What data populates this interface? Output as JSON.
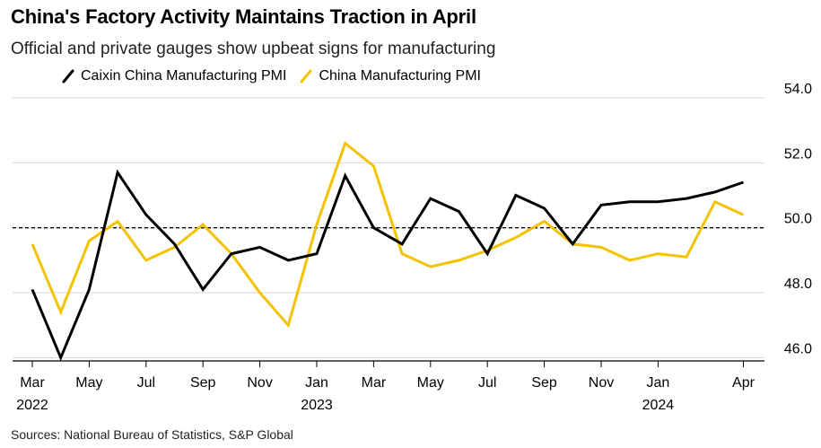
{
  "header": {
    "title": "China's Factory Activity Maintains Traction in April",
    "subtitle": "Official and private gauges show upbeat signs for manufacturing"
  },
  "legend": [
    {
      "label": "Caixin China Manufacturing PMI",
      "color": "#000000"
    },
    {
      "label": "China Manufacturing PMI",
      "color": "#f5c200"
    }
  ],
  "footer": {
    "source": "Sources: National Bureau of Statistics, S&P Global"
  },
  "chart_data": {
    "type": "line",
    "title": "China's Factory Activity Maintains Traction in April",
    "subtitle": "Official and private gauges show upbeat signs for manufacturing",
    "x": [
      "2022-03",
      "2022-04",
      "2022-05",
      "2022-06",
      "2022-07",
      "2022-08",
      "2022-09",
      "2022-10",
      "2022-11",
      "2022-12",
      "2023-01",
      "2023-02",
      "2023-03",
      "2023-04",
      "2023-05",
      "2023-06",
      "2023-07",
      "2023-08",
      "2023-09",
      "2023-10",
      "2023-11",
      "2023-12",
      "2024-01",
      "2024-02",
      "2024-03",
      "2024-04"
    ],
    "series": [
      {
        "name": "Caixin China Manufacturing PMI",
        "color": "#000000",
        "values": [
          48.1,
          46.0,
          48.1,
          51.7,
          50.4,
          49.5,
          48.1,
          49.2,
          49.4,
          49.0,
          49.2,
          51.6,
          50.0,
          49.5,
          50.9,
          50.5,
          49.2,
          51.0,
          50.6,
          49.5,
          50.7,
          50.8,
          50.8,
          50.9,
          51.1,
          51.4
        ]
      },
      {
        "name": "China Manufacturing PMI",
        "color": "#f5c200",
        "values": [
          49.5,
          47.4,
          49.6,
          50.2,
          49.0,
          49.4,
          50.1,
          49.2,
          48.0,
          47.0,
          50.1,
          52.6,
          51.9,
          49.2,
          48.8,
          49.0,
          49.3,
          49.7,
          50.2,
          49.5,
          49.4,
          49.0,
          49.2,
          49.1,
          50.8,
          50.4
        ]
      }
    ],
    "reference_line": 50,
    "ylim": [
      45.9,
      54.0
    ],
    "yticks": [
      "54.0",
      "52.0",
      "50.0",
      "48.0",
      "46.0"
    ],
    "xticks": [
      {
        "label": "Mar",
        "year": "2022",
        "index": 0
      },
      {
        "label": "May",
        "year": "",
        "index": 2
      },
      {
        "label": "Jul",
        "year": "",
        "index": 4
      },
      {
        "label": "Sep",
        "year": "",
        "index": 6
      },
      {
        "label": "Nov",
        "year": "",
        "index": 8
      },
      {
        "label": "Jan",
        "year": "2023",
        "index": 10
      },
      {
        "label": "Mar",
        "year": "",
        "index": 12
      },
      {
        "label": "May",
        "year": "",
        "index": 14
      },
      {
        "label": "Jul",
        "year": "",
        "index": 16
      },
      {
        "label": "Sep",
        "year": "",
        "index": 18
      },
      {
        "label": "Nov",
        "year": "",
        "index": 20
      },
      {
        "label": "Jan",
        "year": "2024",
        "index": 22
      },
      {
        "label": "Apr",
        "year": "",
        "index": 25
      }
    ],
    "grid": true,
    "legend_position": "top-left"
  }
}
